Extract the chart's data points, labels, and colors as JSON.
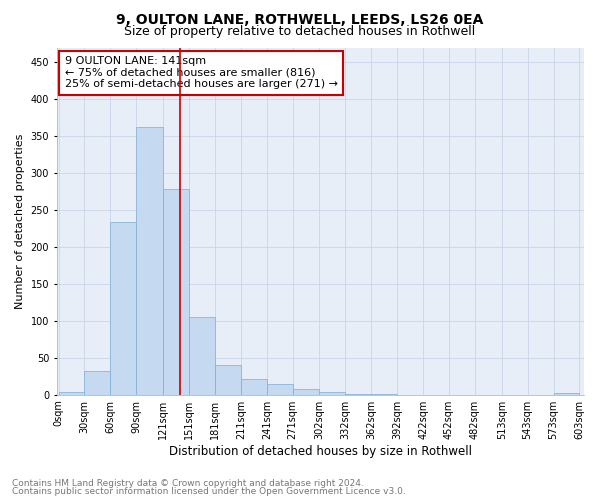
{
  "title1": "9, OULTON LANE, ROTHWELL, LEEDS, LS26 0EA",
  "title2": "Size of property relative to detached houses in Rothwell",
  "xlabel": "Distribution of detached houses by size in Rothwell",
  "ylabel": "Number of detached properties",
  "annotation_line1": "9 OULTON LANE: 141sqm",
  "annotation_line2": "← 75% of detached houses are smaller (816)",
  "annotation_line3": "25% of semi-detached houses are larger (271) →",
  "bin_starts": [
    0,
    30,
    60,
    90,
    121,
    151,
    181,
    211,
    241,
    271,
    302,
    332,
    362,
    392,
    422,
    452,
    482,
    513,
    543,
    573
  ],
  "bar_values": [
    3,
    32,
    234,
    362,
    278,
    105,
    40,
    21,
    14,
    8,
    4,
    1,
    1,
    0,
    0,
    0,
    0,
    0,
    0,
    2
  ],
  "bar_color": "#c5d9f0",
  "bar_edge_color": "#7aadd4",
  "vline_x": 141,
  "vline_color": "#cc0000",
  "grid_color": "#c8d4e8",
  "background_color": "#e8eef8",
  "box_edge_color": "#cc0000",
  "footnote_line1": "Contains HM Land Registry data © Crown copyright and database right 2024.",
  "footnote_line2": "Contains public sector information licensed under the Open Government Licence v3.0.",
  "ylim": [
    0,
    470
  ],
  "yticks": [
    0,
    50,
    100,
    150,
    200,
    250,
    300,
    350,
    400,
    450
  ],
  "title1_fontsize": 10,
  "title2_fontsize": 9,
  "xlabel_fontsize": 8.5,
  "ylabel_fontsize": 8,
  "tick_fontsize": 7,
  "annotation_fontsize": 8,
  "footnote_fontsize": 6.5
}
